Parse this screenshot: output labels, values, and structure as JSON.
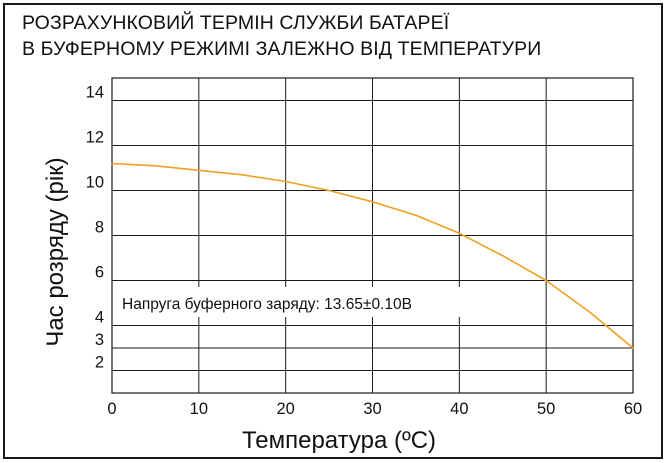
{
  "chart_data": {
    "type": "line",
    "title_lines": [
      "РОЗРАХУНКОВИЙ ТЕРМІН СЛУЖБИ БАТАРЕЇ",
      "В БУФЕРНОМУ РЕЖИМІ ЗАЛЕЖНО ВІД ТЕМПЕРАТУРИ"
    ],
    "xlabel": "Температура (ºC)",
    "ylabel": "Час розряду (рік)",
    "xlim": [
      0,
      60
    ],
    "ylim": [
      1,
      15
    ],
    "x_ticks": [
      0,
      10,
      20,
      30,
      40,
      50,
      60
    ],
    "y_ticks": [
      2,
      3,
      4,
      6,
      8,
      10,
      12,
      14
    ],
    "grid": true,
    "annotation": "Напруга буферного заряду: 13.65±0.10В",
    "series": [
      {
        "color": "#f0a020",
        "x": [
          0,
          5,
          10,
          15,
          20,
          25,
          30,
          35,
          40,
          45,
          50,
          55,
          60
        ],
        "y": [
          11.2,
          11.1,
          10.9,
          10.7,
          10.4,
          10.0,
          9.5,
          8.9,
          8.1,
          7.1,
          6.0,
          4.6,
          3.0
        ]
      }
    ]
  }
}
